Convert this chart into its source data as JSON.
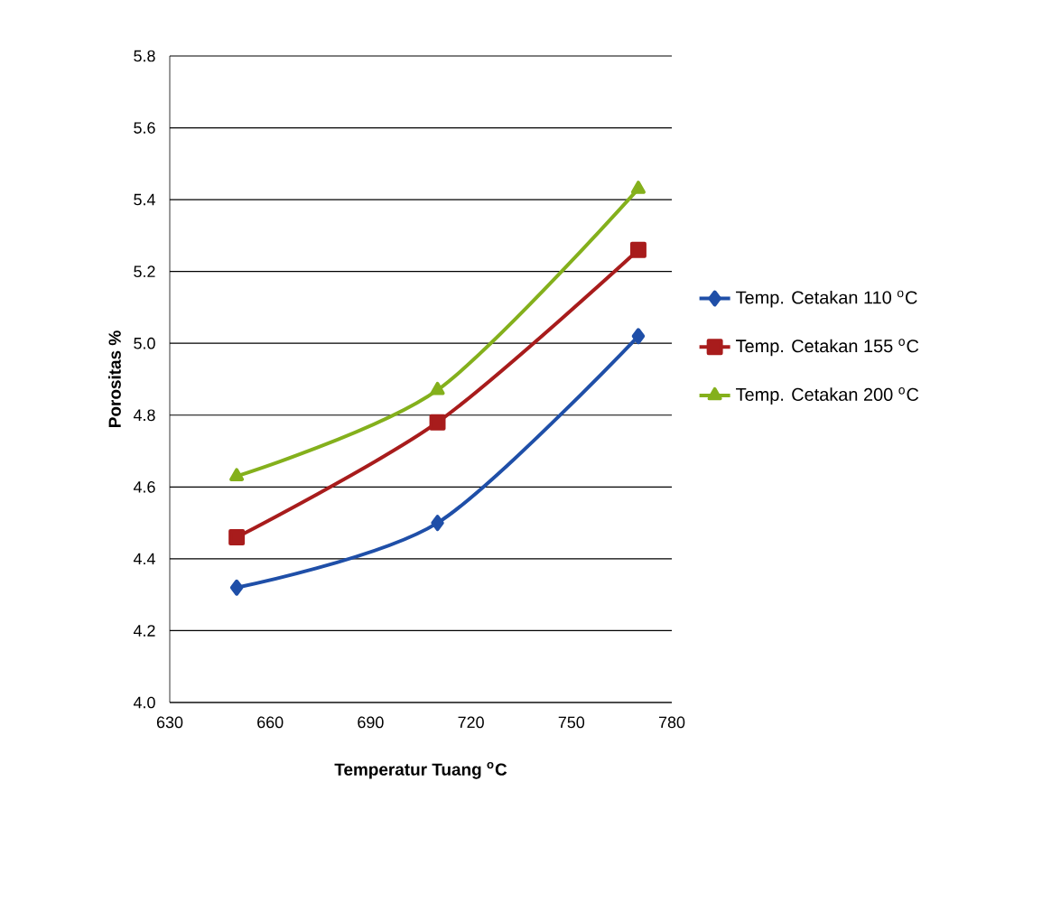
{
  "chart_data": {
    "type": "line",
    "xlabel": "Temperatur Tuang  $^{o}$C",
    "ylabel": "Porositas  %",
    "x": [
      650,
      710,
      770
    ],
    "series": [
      {
        "name": "Temp. Cetakan 110 $^{o}$C",
        "color": "#1f4fa8",
        "marker": "diamond",
        "values": [
          4.32,
          4.5,
          5.02
        ]
      },
      {
        "name": "Temp. Cetakan 155 $^{o}$C",
        "color": "#a81c1c",
        "marker": "square",
        "values": [
          4.46,
          4.78,
          5.26
        ]
      },
      {
        "name": "Temp.  Cetakan 200 $^{o}$C",
        "color": "#84b01c",
        "marker": "triangle",
        "values": [
          4.63,
          4.87,
          5.43
        ]
      }
    ],
    "xlim": [
      630,
      780
    ],
    "xticks": [
      630,
      660,
      690,
      720,
      750,
      780
    ],
    "ylim": [
      4.0,
      5.8
    ],
    "yticks": [
      {
        "value": 4,
        "label": "4.0"
      },
      4.2,
      4.4,
      4.6,
      4.8,
      {
        "value": 5,
        "label": "5.0"
      },
      5.2,
      5.4,
      5.6,
      5.8
    ],
    "grid": "y",
    "legend": "right",
    "line_style": "solid"
  }
}
